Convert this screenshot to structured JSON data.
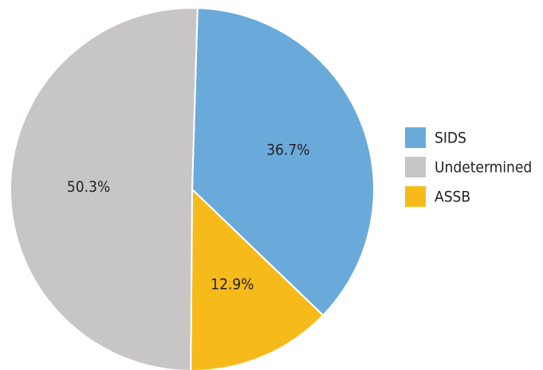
{
  "chart_data": {
    "type": "pie",
    "categories": [
      "SIDS",
      "Undetermined",
      "ASSB"
    ],
    "values": [
      36.7,
      50.3,
      12.9
    ],
    "value_labels": [
      "36.7%",
      "50.3%",
      "12.9%"
    ],
    "colors": [
      "#6aaadb",
      "#c7c5c6",
      "#f6bb1b"
    ],
    "clockwise_order": [
      0,
      2,
      1
    ],
    "legend": "right"
  }
}
